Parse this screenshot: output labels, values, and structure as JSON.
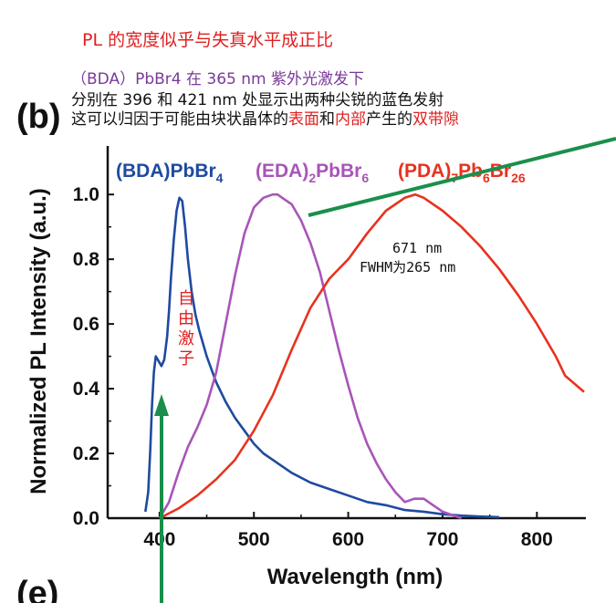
{
  "annotations": {
    "heading": "PL 的宽度似乎与失真水平成正比",
    "line1": "（BDA）PbBr4 在 365 nm 紫外光激发下",
    "line2": "分别在 396 和 421 nm 处显示出两种尖锐的蓝色发射",
    "line3_a": "这可以归因于可能由块状晶体的",
    "line3_b": "表面",
    "line3_c": "和",
    "line3_d": "内部",
    "line3_e": "产生的",
    "line3_f": "双带隙",
    "exciton_label": "自由激子",
    "peak_note_1": "671 nm",
    "peak_note_2": "FWHM为265 nm"
  },
  "panel_labels": [
    "(b)",
    "(e)"
  ],
  "colors": {
    "bda": "#1f4aa0",
    "eda": "#a855b8",
    "pda": "#e8321e",
    "arrow": "#1a8f4c",
    "annotation": "#e02020",
    "annotation_purple": "#7a3a9a"
  },
  "chart_data": {
    "type": "line",
    "xlabel": "Wavelength (nm)",
    "ylabel": "Normalized PL Intensity (a.u.)",
    "xlim": [
      345,
      850
    ],
    "ylim": [
      0,
      1.15
    ],
    "xticks": [
      400,
      500,
      600,
      700,
      800
    ],
    "yticks": [
      0.0,
      0.2,
      0.4,
      0.6,
      0.8,
      1.0
    ],
    "xtick_labels": [
      "400",
      "500",
      "600",
      "700",
      "800"
    ],
    "ytick_labels": [
      "0.0",
      "0.2",
      "0.4",
      "0.6",
      "0.8",
      "1.0"
    ],
    "series": [
      {
        "name": "(BDA)PbBr4",
        "x": [
          385,
          388,
          390,
          392,
          394,
          396,
          398,
          400,
          402,
          405,
          408,
          410,
          412,
          415,
          418,
          421,
          424,
          427,
          430,
          434,
          438,
          442,
          446,
          450,
          455,
          460,
          470,
          480,
          490,
          500,
          510,
          520,
          530,
          540,
          560,
          580,
          600,
          620,
          640,
          660,
          680,
          700,
          720,
          740,
          760
        ],
        "y": [
          0.02,
          0.08,
          0.2,
          0.35,
          0.45,
          0.5,
          0.49,
          0.48,
          0.47,
          0.49,
          0.56,
          0.64,
          0.74,
          0.86,
          0.95,
          0.99,
          0.98,
          0.9,
          0.8,
          0.7,
          0.63,
          0.58,
          0.54,
          0.5,
          0.46,
          0.42,
          0.36,
          0.31,
          0.27,
          0.23,
          0.2,
          0.18,
          0.16,
          0.14,
          0.11,
          0.09,
          0.07,
          0.05,
          0.04,
          0.025,
          0.02,
          0.012,
          0.008,
          0.005,
          0.003
        ]
      },
      {
        "name": "(EDA)2PbBr6",
        "x": [
          400,
          410,
          420,
          430,
          440,
          450,
          460,
          470,
          480,
          490,
          500,
          510,
          520,
          525,
          530,
          540,
          550,
          560,
          570,
          580,
          590,
          600,
          610,
          620,
          630,
          640,
          650,
          660,
          670,
          680,
          690,
          700,
          710,
          720
        ],
        "y": [
          0.0,
          0.05,
          0.14,
          0.22,
          0.28,
          0.35,
          0.45,
          0.6,
          0.75,
          0.88,
          0.96,
          0.99,
          1.0,
          1.0,
          0.99,
          0.97,
          0.92,
          0.85,
          0.76,
          0.64,
          0.52,
          0.41,
          0.31,
          0.23,
          0.17,
          0.12,
          0.08,
          0.05,
          0.06,
          0.06,
          0.04,
          0.02,
          0.01,
          0.0
        ]
      },
      {
        "name": "(PDA)7Pb6Br26",
        "x": [
          400,
          420,
          440,
          460,
          480,
          500,
          520,
          540,
          560,
          580,
          600,
          620,
          640,
          660,
          671,
          680,
          700,
          720,
          740,
          760,
          780,
          800,
          820,
          830,
          850
        ],
        "y": [
          0.0,
          0.03,
          0.07,
          0.12,
          0.18,
          0.27,
          0.38,
          0.52,
          0.65,
          0.74,
          0.8,
          0.88,
          0.95,
          0.99,
          1.0,
          0.99,
          0.95,
          0.9,
          0.84,
          0.77,
          0.69,
          0.6,
          0.5,
          0.44,
          0.39
        ]
      }
    ],
    "legend": [
      {
        "label": "(BDA)PbBr",
        "sub1": "4",
        "mid": "",
        "sub2": ""
      },
      {
        "label": "(EDA)",
        "sub1": "2",
        "mid": "PbBr",
        "sub2": "6"
      },
      {
        "label": "(PDA)",
        "sub1": "7",
        "mid": "Pb",
        "sub2": "6",
        "tail": "Br",
        "sub3": "26"
      }
    ]
  }
}
